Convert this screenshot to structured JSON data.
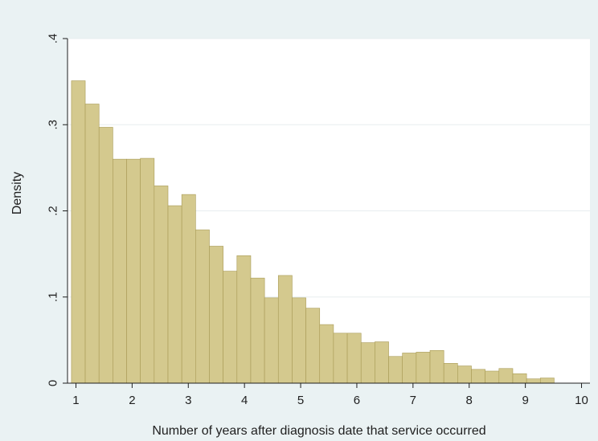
{
  "chart_data": {
    "type": "bar",
    "subtype": "histogram",
    "title": "",
    "xlabel": "Number of years after diagnosis date that service occurred",
    "ylabel": "Density",
    "xlim": [
      0.85,
      10.15
    ],
    "ylim": [
      0,
      0.4
    ],
    "x_ticks": [
      1,
      2,
      3,
      4,
      5,
      6,
      7,
      8,
      9,
      10
    ],
    "x_tick_labels": [
      "1",
      "2",
      "3",
      "4",
      "5",
      "6",
      "7",
      "8",
      "9",
      "10"
    ],
    "y_ticks": [
      0,
      0.1,
      0.2,
      0.3,
      0.4
    ],
    "y_tick_labels": [
      "0",
      ".1",
      ".2",
      ".3",
      ".4"
    ],
    "grid": "horizontal",
    "bin_start": 0.92,
    "bin_width": 0.2455,
    "values": [
      0.351,
      0.324,
      0.297,
      0.26,
      0.26,
      0.261,
      0.229,
      0.206,
      0.219,
      0.178,
      0.159,
      0.13,
      0.148,
      0.122,
      0.099,
      0.125,
      0.099,
      0.087,
      0.068,
      0.058,
      0.058,
      0.047,
      0.048,
      0.031,
      0.035,
      0.036,
      0.038,
      0.023,
      0.02,
      0.016,
      0.014,
      0.017,
      0.011,
      0.005,
      0.006
    ],
    "colors": {
      "bar_fill": "#d4c98e",
      "bar_stroke": "#a89a55",
      "plot_background": "#ffffff",
      "figure_background": "#eaf2f3",
      "grid": "#e7edef"
    }
  }
}
